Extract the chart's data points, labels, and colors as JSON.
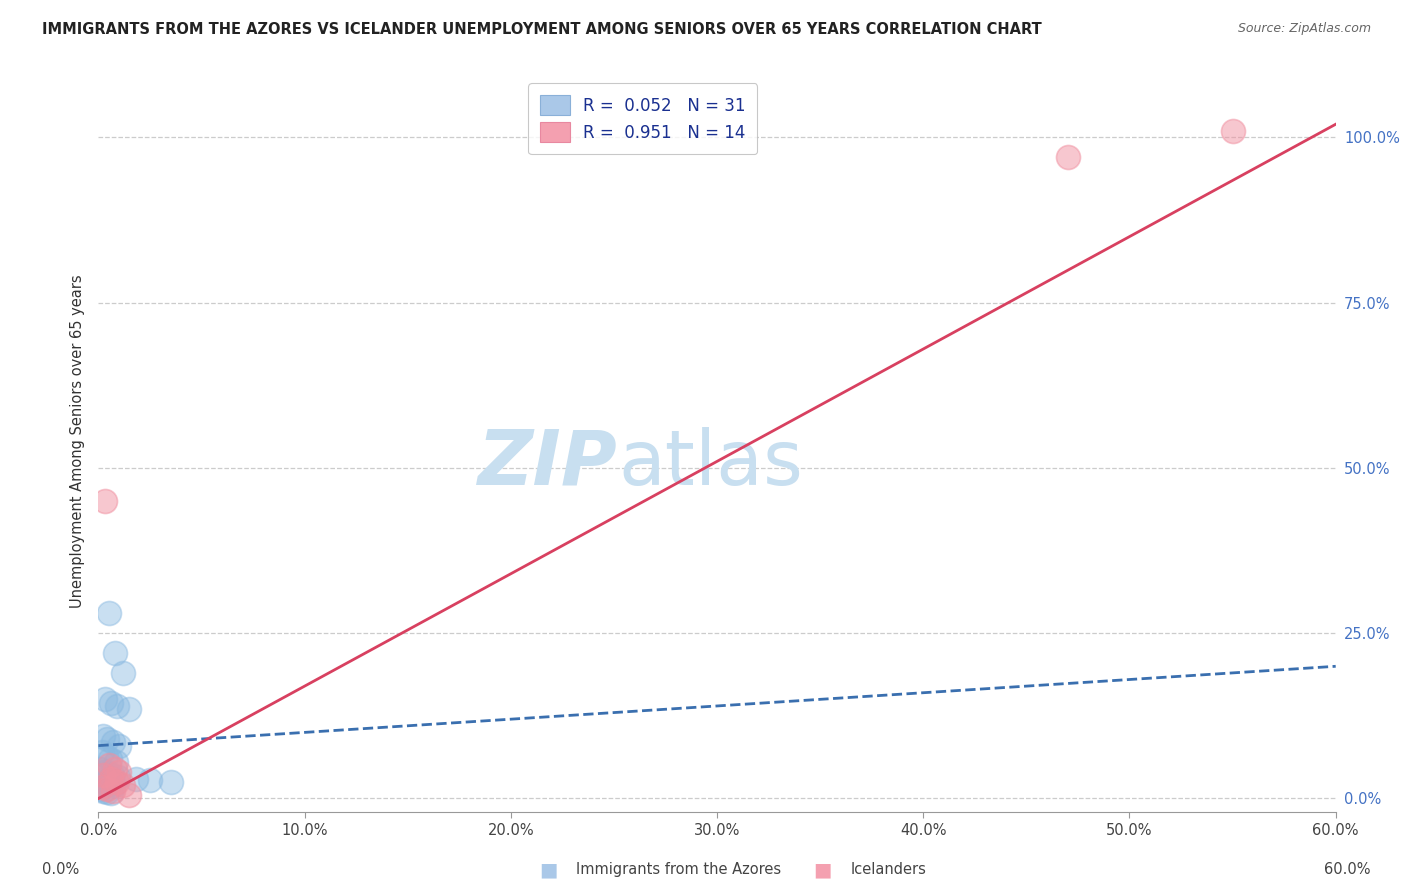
{
  "title": "IMMIGRANTS FROM THE AZORES VS ICELANDER UNEMPLOYMENT AMONG SENIORS OVER 65 YEARS CORRELATION CHART",
  "source": "Source: ZipAtlas.com",
  "ylabel_left": "Unemployment Among Seniors over 65 years",
  "x_tick_labels": [
    "0.0%",
    "10.0%",
    "20.0%",
    "30.0%",
    "40.0%",
    "50.0%",
    "60.0%"
  ],
  "x_tick_values": [
    0,
    10,
    20,
    30,
    40,
    50,
    60
  ],
  "y_tick_labels": [
    "0.0%",
    "25.0%",
    "50.0%",
    "75.0%",
    "100.0%"
  ],
  "y_tick_values": [
    0,
    25,
    50,
    75,
    100
  ],
  "legend_label_blue": "R =  0.052   N = 31",
  "legend_label_pink": "R =  0.951   N = 14",
  "legend_color_blue": "#aac8e8",
  "legend_color_pink": "#f4a0b0",
  "blue_color": "#88b8e0",
  "pink_color": "#f090a0",
  "blue_line_color": "#3a6faf",
  "pink_line_color": "#d84060",
  "watermark_zip": "ZIP",
  "watermark_atlas": "atlas",
  "watermark_color": "#c8dff0",
  "blue_scatter": [
    [
      0.5,
      28.0
    ],
    [
      0.8,
      22.0
    ],
    [
      1.2,
      19.0
    ],
    [
      0.3,
      15.0
    ],
    [
      0.6,
      14.5
    ],
    [
      0.9,
      14.0
    ],
    [
      1.5,
      13.5
    ],
    [
      0.2,
      9.5
    ],
    [
      0.4,
      9.0
    ],
    [
      0.7,
      8.5
    ],
    [
      1.0,
      8.0
    ],
    [
      0.15,
      7.0
    ],
    [
      0.35,
      6.5
    ],
    [
      0.55,
      6.0
    ],
    [
      0.85,
      5.5
    ],
    [
      0.1,
      4.5
    ],
    [
      0.25,
      4.0
    ],
    [
      0.45,
      3.8
    ],
    [
      0.65,
      3.5
    ],
    [
      0.95,
      3.2
    ],
    [
      0.12,
      2.8
    ],
    [
      0.3,
      2.5
    ],
    [
      0.5,
      2.2
    ],
    [
      0.75,
      2.0
    ],
    [
      0.08,
      1.5
    ],
    [
      0.2,
      1.2
    ],
    [
      0.4,
      1.0
    ],
    [
      0.6,
      0.8
    ],
    [
      1.8,
      3.0
    ],
    [
      2.5,
      2.8
    ],
    [
      3.5,
      2.5
    ]
  ],
  "pink_scatter": [
    [
      0.3,
      45.0
    ],
    [
      0.5,
      5.0
    ],
    [
      0.8,
      4.5
    ],
    [
      1.0,
      4.0
    ],
    [
      0.2,
      3.5
    ],
    [
      0.6,
      3.0
    ],
    [
      0.9,
      2.5
    ],
    [
      1.2,
      2.0
    ],
    [
      0.15,
      1.8
    ],
    [
      0.4,
      1.5
    ],
    [
      0.7,
      1.2
    ],
    [
      1.5,
      0.5
    ],
    [
      47.0,
      97.0
    ],
    [
      55.0,
      101.0
    ]
  ],
  "blue_line_x": [
    0,
    60
  ],
  "blue_line_y": [
    8.0,
    20.0
  ],
  "pink_line_x": [
    0,
    60
  ],
  "pink_line_y": [
    0.0,
    102.0
  ],
  "xlim": [
    0,
    60
  ],
  "ylim": [
    -2,
    110
  ],
  "figsize": [
    14.06,
    8.92
  ],
  "dpi": 100
}
